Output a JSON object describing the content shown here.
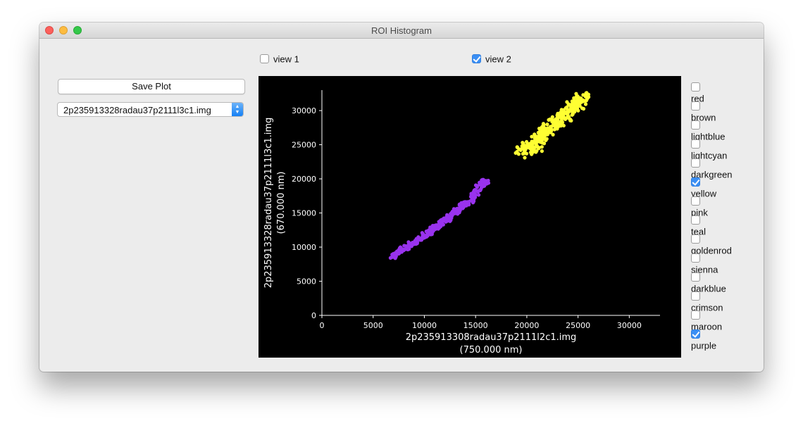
{
  "window": {
    "title": "ROI Histogram"
  },
  "toolbar": {
    "save_label": "Save Plot"
  },
  "file_select": {
    "value": "2p235913328radau37p2111l3c1.img"
  },
  "views": [
    {
      "label": "view 1",
      "checked": false
    },
    {
      "label": "view 2",
      "checked": true
    }
  ],
  "roi_colors": [
    {
      "label": "red",
      "checked": false
    },
    {
      "label": "brown",
      "checked": false
    },
    {
      "label": "lightblue",
      "checked": false
    },
    {
      "label": "lightcyan",
      "checked": false
    },
    {
      "label": "darkgreen",
      "checked": false
    },
    {
      "label": "yellow",
      "checked": true
    },
    {
      "label": "pink",
      "checked": false
    },
    {
      "label": "teal",
      "checked": false
    },
    {
      "label": "goldenrod",
      "checked": false
    },
    {
      "label": "sienna",
      "checked": false
    },
    {
      "label": "darkblue",
      "checked": false
    },
    {
      "label": "crimson",
      "checked": false
    },
    {
      "label": "maroon",
      "checked": false
    },
    {
      "label": "purple",
      "checked": true
    }
  ],
  "chart_data": {
    "type": "scatter",
    "title": "",
    "xlabel": "2p235913308radau37p2111l2c1.img",
    "xlabel_units": "(750.000 nm)",
    "ylabel": "2p235913328radau37p2111l3c1.img",
    "ylabel_units": "(670.000 nm)",
    "xlim": [
      0,
      33000
    ],
    "ylim": [
      0,
      33000
    ],
    "xticks": [
      "0",
      "5000",
      "10000",
      "15000",
      "20000",
      "25000",
      "30000"
    ],
    "yticks": [
      "0",
      "5000",
      "10000",
      "15000",
      "20000",
      "25000",
      "30000"
    ],
    "background": "#000000",
    "grid": false,
    "series": [
      {
        "color": "#9933ee",
        "points": [
          [
            6800,
            8500
          ],
          [
            7600,
            9300
          ],
          [
            8400,
            10100
          ],
          [
            9200,
            10800
          ],
          [
            10000,
            11700
          ],
          [
            10800,
            12600
          ],
          [
            11600,
            13500
          ],
          [
            12400,
            14400
          ],
          [
            13200,
            15400
          ],
          [
            14000,
            16300
          ],
          [
            14800,
            17400
          ],
          [
            15600,
            19400
          ],
          [
            16000,
            19600
          ]
        ]
      },
      {
        "color": "#ffff33",
        "points": [
          [
            19400,
            24200
          ],
          [
            20200,
            24600
          ],
          [
            21000,
            25400
          ],
          [
            21600,
            26600
          ],
          [
            22200,
            27400
          ],
          [
            22800,
            28200
          ],
          [
            23400,
            28800
          ],
          [
            24000,
            29600
          ],
          [
            24600,
            30400
          ],
          [
            25200,
            31100
          ],
          [
            25500,
            32300
          ],
          [
            19800,
            23100
          ]
        ]
      }
    ]
  }
}
